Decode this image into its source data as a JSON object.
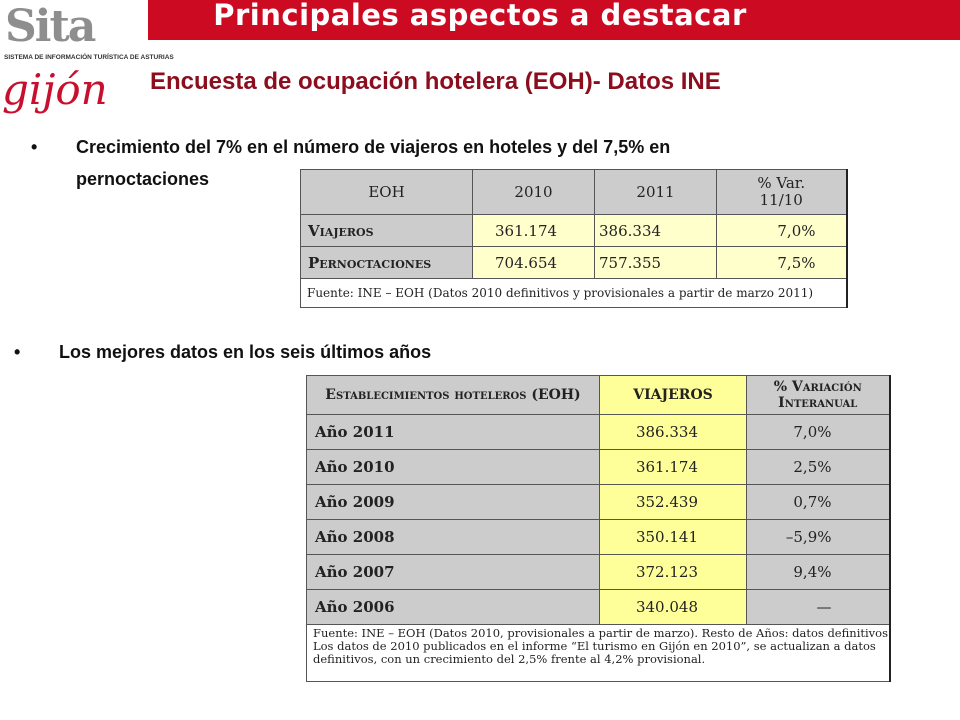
{
  "header": {
    "title": "Principales aspectos a destacar",
    "subtitle": "Encuesta de ocupación hotelera (EOH)- Datos INE"
  },
  "logo": {
    "sita_text": "Sita",
    "sita_caption": "SISTEMA DE INFORMACIÓN TURÍSTICA DE ASTURIAS",
    "gijon_text": "gijón"
  },
  "colors": {
    "top_bar": "#cc0b23",
    "subtitle": "#8b0d1e",
    "cell_gray": "#cccccc",
    "cell_yellow_light": "#ffffcc",
    "cell_yellow": "#ffff99"
  },
  "bullets": [
    {
      "symbol": "•",
      "text_line1": "Crecimiento del 7% en el número de viajeros en hoteles y del 7,5% en",
      "text_line2": "pernoctaciones"
    },
    {
      "symbol": "•",
      "text": "Los mejores datos en los seis últimos años"
    }
  ],
  "table1": {
    "headers": [
      "EOH",
      "2010",
      "2011",
      "% Var.",
      "11/10"
    ],
    "rows": [
      {
        "label": "Viajeros",
        "v2010": "361.174",
        "v2011": "386.334",
        "var": "7,0%"
      },
      {
        "label": "Pernoctaciones",
        "v2010": "704.654",
        "v2011": "757.355",
        "var": "7,5%"
      }
    ],
    "source": "Fuente: INE – EOH (Datos 2010 definitivos y provisionales a partir de marzo 2011)"
  },
  "table2": {
    "headers": [
      "Establecimientos hoteleros (EOH)",
      "VIAJEROS",
      "% Variación",
      "Interanual"
    ],
    "rows": [
      {
        "year": "Año 2011",
        "viajeros": "386.334",
        "var": "7,0%"
      },
      {
        "year": "Año 2010",
        "viajeros": "361.174",
        "var": "2,5%"
      },
      {
        "year": "Año 2009",
        "viajeros": "352.439",
        "var": "0,7%"
      },
      {
        "year": "Año 2008",
        "viajeros": "350.141",
        "var": "–5,9%"
      },
      {
        "year": "Año 2007",
        "viajeros": "372.123",
        "var": "9,4%"
      },
      {
        "year": "Año 2006",
        "viajeros": "340.048",
        "var": "—"
      }
    ],
    "note_lines": [
      "Fuente: INE – EOH (Datos 2010, provisionales a partir de marzo). Resto de Años: datos definitivos",
      "Los datos de 2010 publicados en el informe “El turismo en Gijón en 2010”, se actualizan a datos",
      "definitivos, con un crecimiento del 2,5% frente al 4,2% provisional."
    ]
  }
}
